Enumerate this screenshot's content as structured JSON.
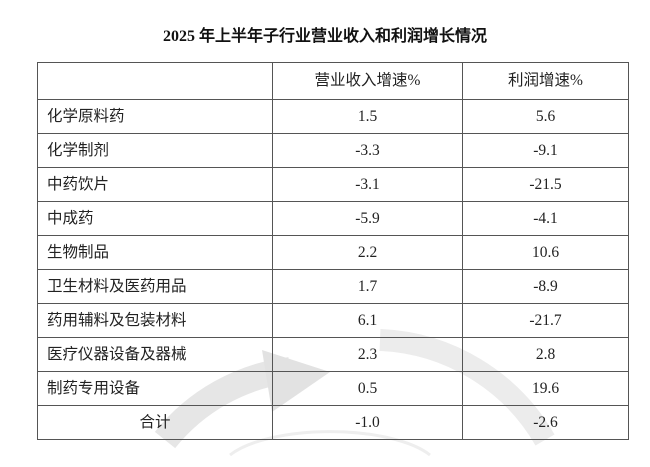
{
  "title": "2025 年上半年子行业营业收入和利润增长情况",
  "table": {
    "headers": [
      "",
      "营业收入增速%",
      "利润增速%"
    ],
    "rows": [
      {
        "name": "化学原料药",
        "revenue": "1.5",
        "profit": "5.6"
      },
      {
        "name": "化学制剂",
        "revenue": "-3.3",
        "profit": "-9.1"
      },
      {
        "name": "中药饮片",
        "revenue": "-3.1",
        "profit": "-21.5"
      },
      {
        "name": "中成药",
        "revenue": "-5.9",
        "profit": "-4.1"
      },
      {
        "name": "生物制品",
        "revenue": "2.2",
        "profit": "10.6"
      },
      {
        "name": "卫生材料及医药用品",
        "revenue": "1.7",
        "profit": "-8.9"
      },
      {
        "name": "药用辅料及包装材料",
        "revenue": "6.1",
        "profit": "-21.7"
      },
      {
        "name": "医疗仪器设备及器械",
        "revenue": "2.3",
        "profit": "2.8"
      },
      {
        "name": "制药专用设备",
        "revenue": "0.5",
        "profit": "19.6"
      }
    ],
    "total": {
      "name": "合计",
      "revenue": "-1.0",
      "profit": "-2.6"
    }
  }
}
